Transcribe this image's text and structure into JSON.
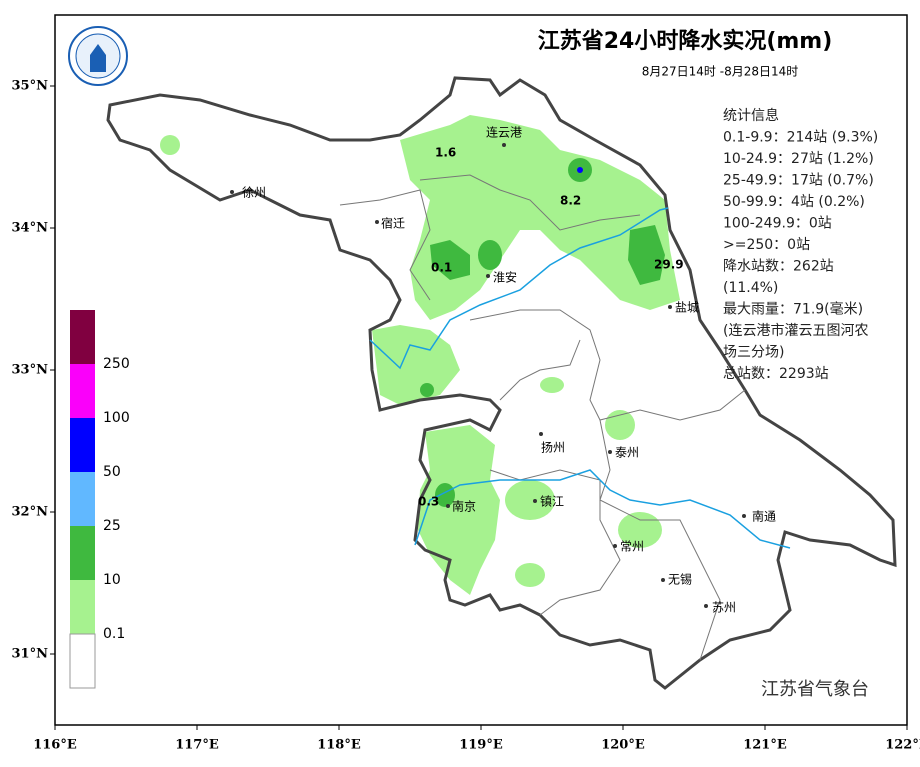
{
  "title": "江苏省24小时降水实况(mm)",
  "subtitle": "8月27日14时 -8月28日14时",
  "stats": [
    "统计信息",
    "0.1-9.9：214站 (9.3%)",
    "10-24.9：27站 (1.2%)",
    "25-49.9：17站 (0.7%)",
    "50-99.9：4站 (0.2%)",
    "100-249.9：0站",
    ">=250：0站",
    "降水站数：262站",
    "(11.4%)",
    "最大雨量：71.9(毫米)",
    "(连云港市灌云五图河农",
    "场三分场)",
    "总站数：2293站"
  ],
  "cities": [
    "连云港",
    "徐州",
    "宿迁",
    "淮安",
    "盐城",
    "扬州",
    "泰州",
    "南京",
    "镇江",
    "南通",
    "常州",
    "无锡",
    "苏州"
  ],
  "rain_labels": [
    "1.6",
    "8.2",
    "0.1",
    "29.9",
    "0.3"
  ],
  "legend": [
    {
      "label": "250",
      "color": "#800040"
    },
    {
      "label": "100",
      "color": "#fa00fa"
    },
    {
      "label": "50",
      "color": "#0000ff"
    },
    {
      "label": "25",
      "color": "#61b8ff"
    },
    {
      "label": "10",
      "color": "#3fb93f"
    },
    {
      "label": "0.1",
      "color": "#a6f28f"
    }
  ],
  "footer": "江苏省气象台",
  "xlim": [
    116,
    122
  ],
  "ylim": [
    30.5,
    35.5
  ],
  "xticks": [
    {
      "value": 116,
      "label": "116°E"
    },
    {
      "value": 117,
      "label": "117°E"
    },
    {
      "value": 118,
      "label": "118°E"
    },
    {
      "value": 119,
      "label": "119°E"
    },
    {
      "value": 120,
      "label": "120°E"
    },
    {
      "value": 121,
      "label": "121°E"
    },
    {
      "value": 122,
      "label": "122°E"
    }
  ],
  "yticks": [
    {
      "value": 31,
      "label": "31°N"
    },
    {
      "value": 32,
      "label": "32°N"
    },
    {
      "value": 33,
      "label": "33°N"
    },
    {
      "value": 34,
      "label": "34°N"
    },
    {
      "value": 35,
      "label": "35°N"
    }
  ]
}
